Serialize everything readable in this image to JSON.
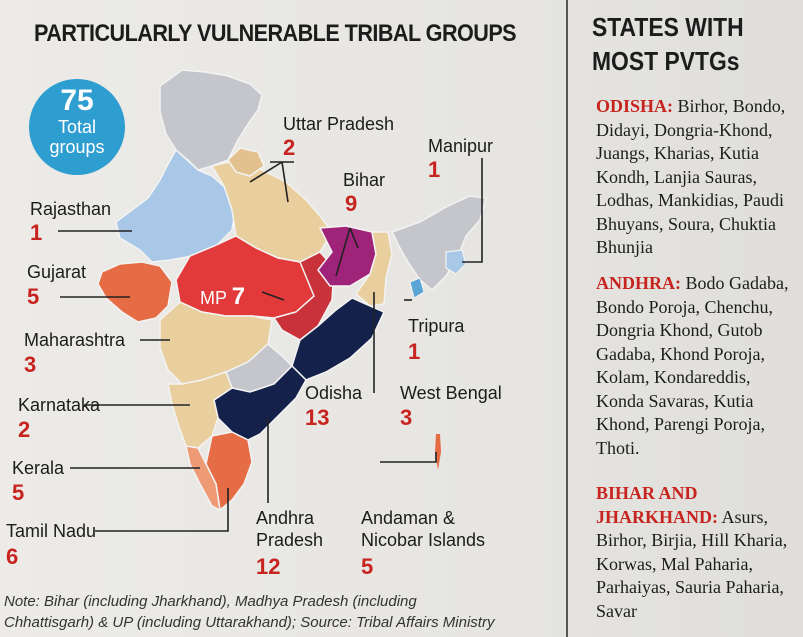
{
  "title": "PARTICULARLY VULNERABLE TRIBAL GROUPS",
  "badge": {
    "number": "75",
    "line1": "Total",
    "line2": "groups"
  },
  "states": {
    "uttar_pradesh": {
      "name": "Uttar Pradesh",
      "count": "2"
    },
    "manipur": {
      "name": "Manipur",
      "count": "1"
    },
    "bihar": {
      "name": "Bihar",
      "count": "9"
    },
    "rajasthan": {
      "name": "Rajasthan",
      "count": "1"
    },
    "gujarat": {
      "name": "Gujarat",
      "count": "5"
    },
    "mp": {
      "name": "MP",
      "count": "7"
    },
    "maharashtra": {
      "name": "Maharashtra",
      "count": "3"
    },
    "tripura": {
      "name": "Tripura",
      "count": "1"
    },
    "odisha": {
      "name": "Odisha",
      "count": "13"
    },
    "west_bengal": {
      "name": "West Bengal",
      "count": "3"
    },
    "karnataka": {
      "name": "Karnataka",
      "count": "2"
    },
    "kerala": {
      "name": "Kerala",
      "count": "5"
    },
    "tamil_nadu": {
      "name": "Tamil Nadu",
      "count": "6"
    },
    "andhra": {
      "name1": "Andhra",
      "name2": "Pradesh",
      "count": "12"
    },
    "andaman": {
      "name1": "Andaman &",
      "name2": "Nicobar Islands",
      "count": "5"
    }
  },
  "note": {
    "line1": "Note: Bihar (including Jharkhand), Madhya Pradesh (including",
    "line2": "Chhattisgarh) & UP (including Uttarakhand); Source: Tribal Affairs Ministry"
  },
  "sidebar": {
    "title1": "STATES WITH",
    "title2": "MOST PVTGs",
    "sections": [
      {
        "heading": "ODISHA:",
        "text": "Birhor, Bondo, Didayi, Dongria-Khond, Juangs, Kharias, Kutia Kondh, Lanjia Sauras, Lodhas, Mankidias, Paudi Bhuyans, Soura, Chuktia Bhunjia"
      },
      {
        "heading": "ANDHRA:",
        "text": "Bodo Gadaba, Bondo Poroja, Chenchu, Dongria Khond, Gutob Gadaba, Khond Poroja, Kolam, Kondareddis, Konda Savaras, Kutia Khond, Parengi Poroja, Thoti."
      },
      {
        "heading1": "BIHAR AND",
        "heading2": "JHARKHAND:",
        "text": "Asurs, Birhor, Birjia, Hill Kharia, Korwas, Mal Paharia, Parhaiyas, Sauria Paharia, Savar"
      }
    ]
  },
  "colors": {
    "accent_red": "#c8241f",
    "badge_blue": "#2e9dd0",
    "odisha_andhra": "#14214a",
    "bihar": "#a0237a",
    "mp": "#e23a3a",
    "gujarat_orange": "#e66c45",
    "tan": "#e9cf9e",
    "light_blue": "#a9c8e8",
    "grey": "#c4c6cc"
  }
}
